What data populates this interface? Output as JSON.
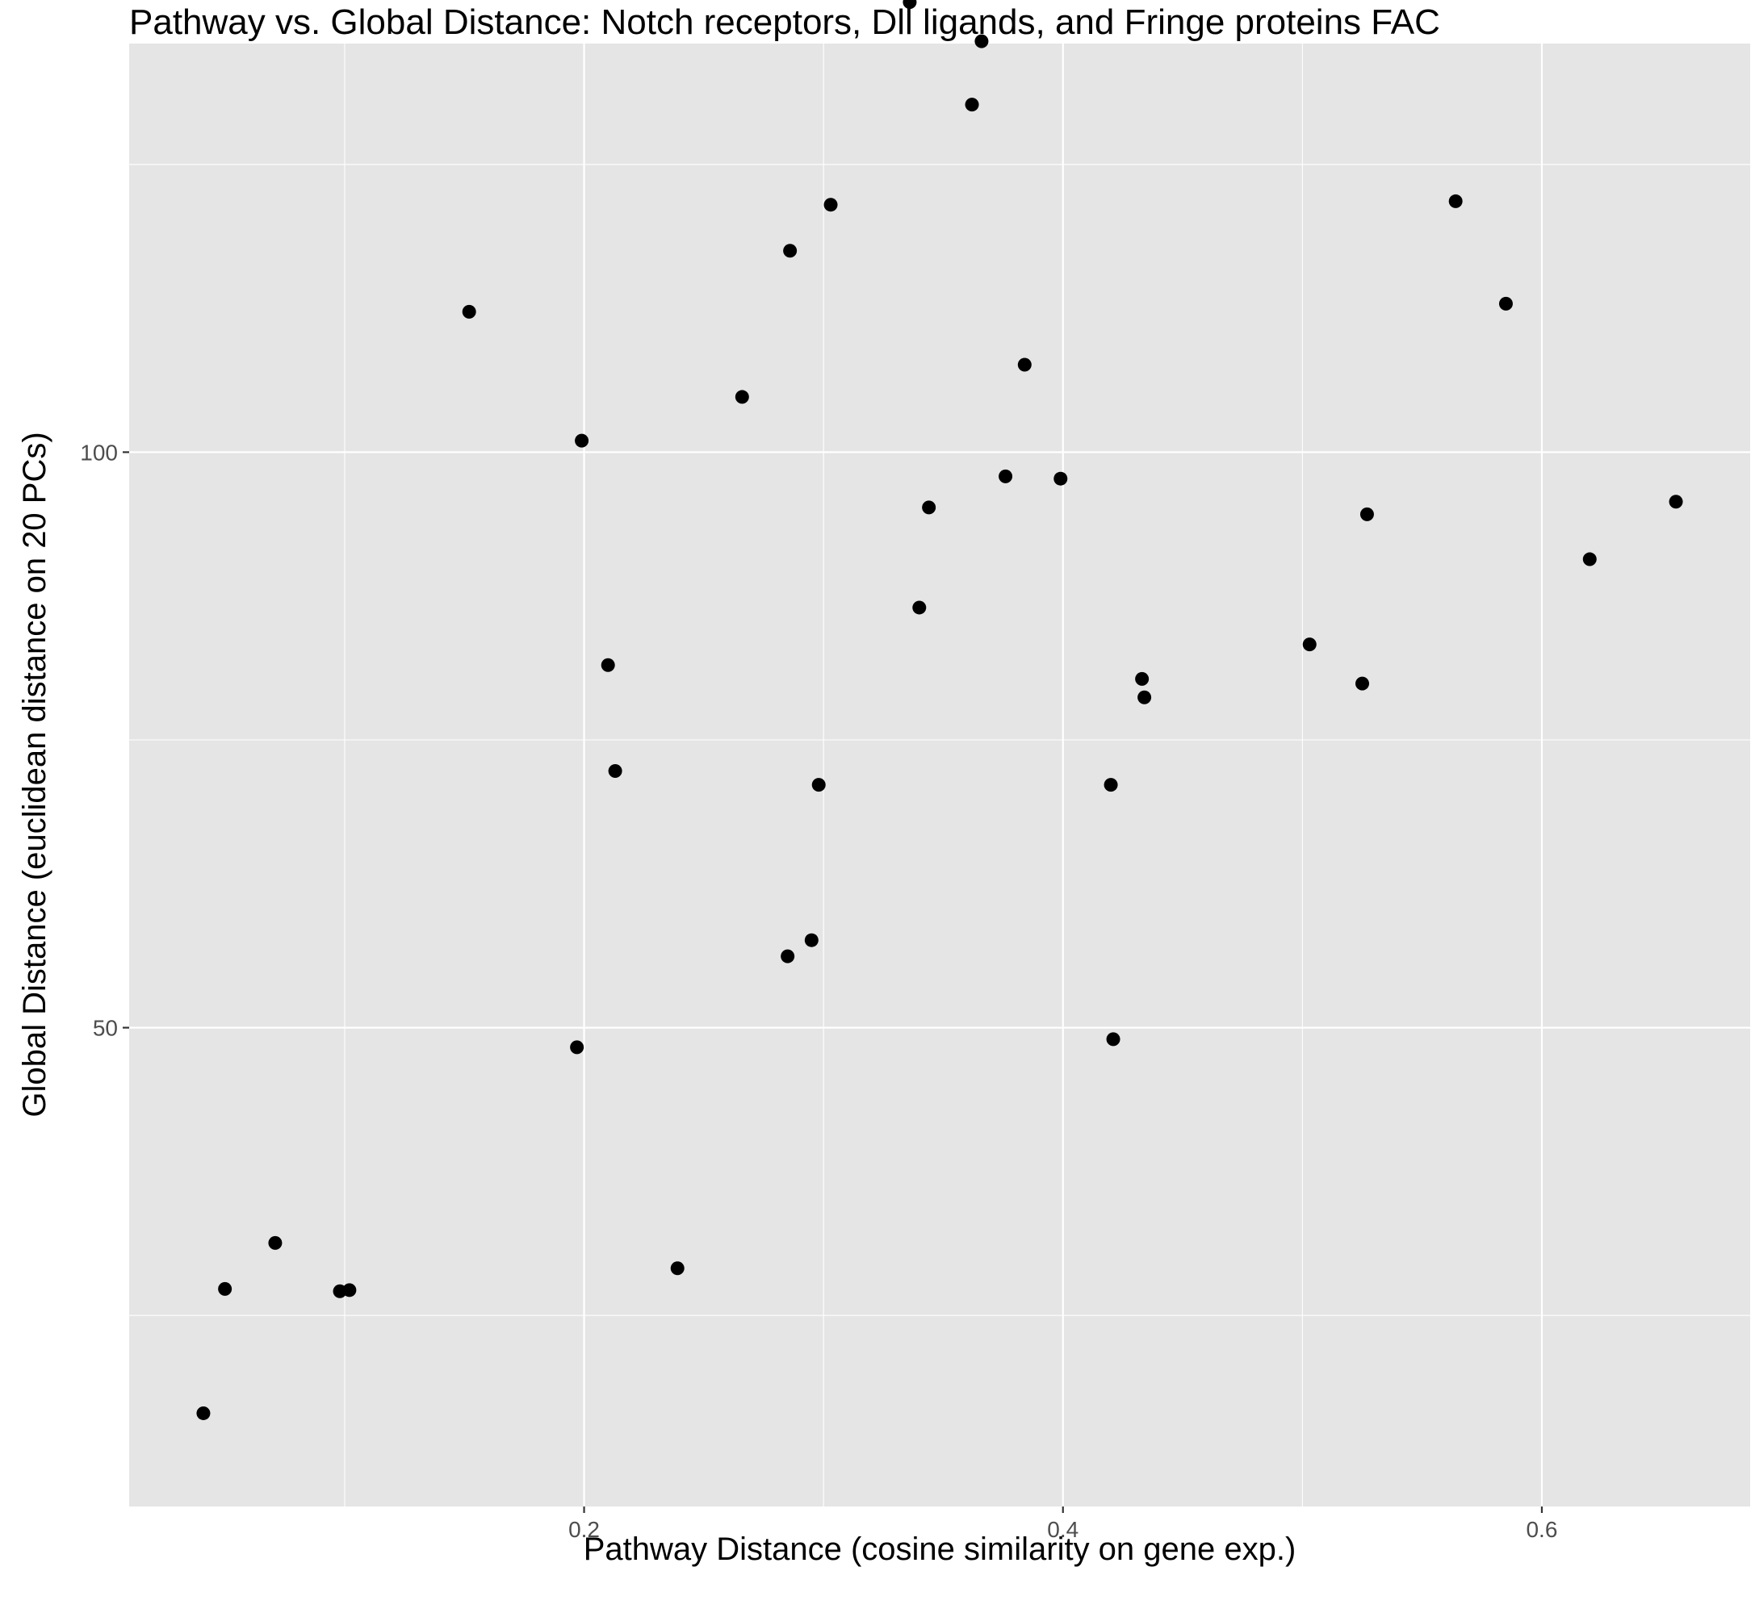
{
  "chart_data": {
    "type": "scatter",
    "title": "Pathway vs. Global Distance: Notch receptors, Dll ligands, and Fringe proteins FAC",
    "xlabel": "Pathway Distance (cosine similarity on gene exp.)",
    "ylabel": "Global Distance (euclidean distance on 20 PCs)",
    "xlim": [
      0.01,
      0.687
    ],
    "ylim": [
      8.4,
      135.5
    ],
    "x_ticks": [
      0.2,
      0.4,
      0.6
    ],
    "x_tick_labels": [
      "0.2",
      "0.4",
      "0.6"
    ],
    "y_ticks": [
      50,
      100
    ],
    "y_tick_labels": [
      "50",
      "100"
    ],
    "grid": true,
    "background": "#e5e5e5",
    "grid_color": "#ffffff",
    "point_color": "#000000",
    "series": [
      {
        "points": [
          {
            "x": 0.041,
            "y": 16.5
          },
          {
            "x": 0.05,
            "y": 27.3
          },
          {
            "x": 0.071,
            "y": 31.3
          },
          {
            "x": 0.098,
            "y": 27.1
          },
          {
            "x": 0.102,
            "y": 27.2
          },
          {
            "x": 0.152,
            "y": 112.2
          },
          {
            "x": 0.197,
            "y": 48.3
          },
          {
            "x": 0.199,
            "y": 101.0
          },
          {
            "x": 0.21,
            "y": 81.5
          },
          {
            "x": 0.213,
            "y": 72.3
          },
          {
            "x": 0.239,
            "y": 29.1
          },
          {
            "x": 0.266,
            "y": 104.8
          },
          {
            "x": 0.285,
            "y": 56.2
          },
          {
            "x": 0.286,
            "y": 117.5
          },
          {
            "x": 0.295,
            "y": 57.6
          },
          {
            "x": 0.298,
            "y": 71.1
          },
          {
            "x": 0.303,
            "y": 121.5
          },
          {
            "x": 0.336,
            "y": 139.1
          },
          {
            "x": 0.34,
            "y": 86.5
          },
          {
            "x": 0.344,
            "y": 95.2
          },
          {
            "x": 0.362,
            "y": 130.2
          },
          {
            "x": 0.366,
            "y": 135.7
          },
          {
            "x": 0.376,
            "y": 97.9
          },
          {
            "x": 0.384,
            "y": 107.6
          },
          {
            "x": 0.399,
            "y": 97.7
          },
          {
            "x": 0.42,
            "y": 71.1
          },
          {
            "x": 0.421,
            "y": 49.0
          },
          {
            "x": 0.433,
            "y": 80.3
          },
          {
            "x": 0.434,
            "y": 78.7
          },
          {
            "x": 0.503,
            "y": 83.3
          },
          {
            "x": 0.525,
            "y": 79.9
          },
          {
            "x": 0.527,
            "y": 94.6
          },
          {
            "x": 0.564,
            "y": 121.8
          },
          {
            "x": 0.585,
            "y": 112.9
          },
          {
            "x": 0.62,
            "y": 90.7
          },
          {
            "x": 0.656,
            "y": 95.7
          }
        ]
      }
    ]
  }
}
